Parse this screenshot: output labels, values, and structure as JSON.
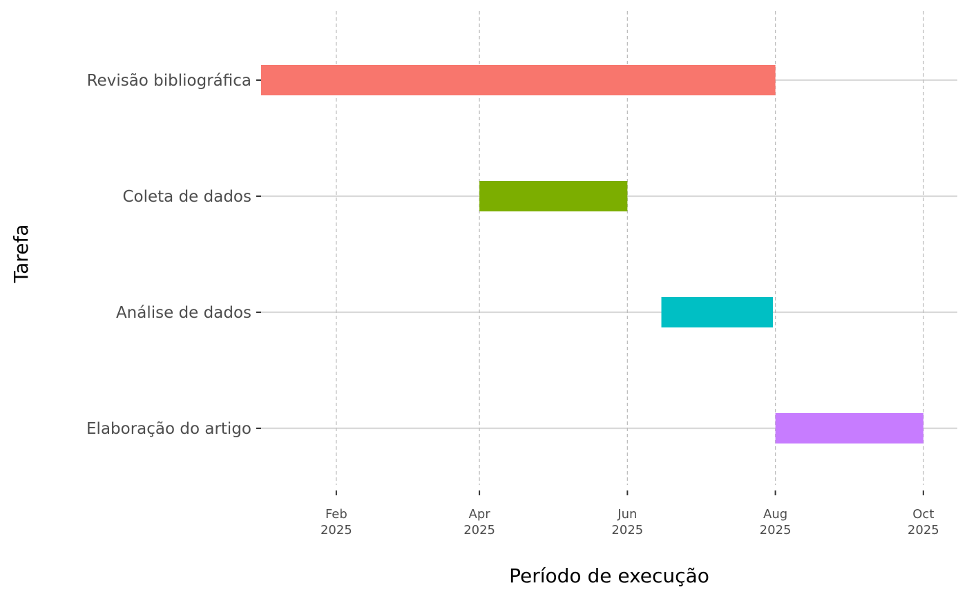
{
  "chart_data": {
    "type": "gantt",
    "title": "",
    "xlabel": "Período de execução",
    "ylabel": "Tarefa",
    "xlim": [
      "2025-01-01",
      "2025-10-15"
    ],
    "grid": {
      "major_y": true,
      "major_x": true,
      "major_x_style": "dashed"
    },
    "legend": "none",
    "x_ticks": [
      {
        "date": "2025-02-01",
        "label_top": "Feb",
        "label_bottom": "2025"
      },
      {
        "date": "2025-04-01",
        "label_top": "Apr",
        "label_bottom": "2025"
      },
      {
        "date": "2025-06-01",
        "label_top": "Jun",
        "label_bottom": "2025"
      },
      {
        "date": "2025-08-01",
        "label_top": "Aug",
        "label_bottom": "2025"
      },
      {
        "date": "2025-10-01",
        "label_top": "Oct",
        "label_bottom": "2025"
      }
    ],
    "tasks": [
      {
        "name": "Revisão bibliográfica",
        "start": "2025-01-01",
        "end": "2025-08-01",
        "color": "#F8766D"
      },
      {
        "name": "Coleta de dados",
        "start": "2025-04-01",
        "end": "2025-06-01",
        "color": "#7CAE00"
      },
      {
        "name": "Análise de dados",
        "start": "2025-06-15",
        "end": "2025-07-31",
        "color": "#00BFC4"
      },
      {
        "name": "Elaboração do artigo",
        "start": "2025-08-01",
        "end": "2025-10-01",
        "color": "#C77CFF"
      }
    ],
    "colors": {
      "grid_major": "#d9d9d9",
      "grid_x": "#bdbdbd",
      "tick_text": "#4d4d4d",
      "axis_title": "#000000",
      "tick_mark": "#333333"
    }
  }
}
